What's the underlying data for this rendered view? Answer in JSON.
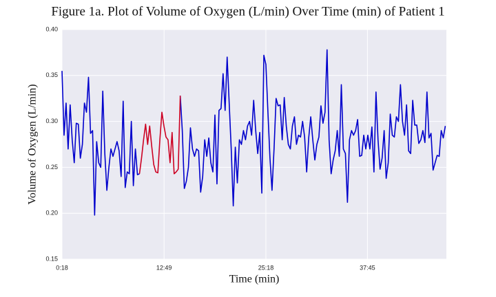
{
  "chart_data": {
    "type": "line",
    "title": "Figure 1a. Plot of Volume of Oxygen (L/min) Over Time (min) of Patient 1",
    "x_label": "Time (min)",
    "y_label": "Volume of Oxygen (L/min)",
    "xlim": [
      18,
      2846
    ],
    "xticks": [
      {
        "value": 18,
        "label": "0:18"
      },
      {
        "value": 769,
        "label": "12:49"
      },
      {
        "value": 1518,
        "label": "25:18"
      },
      {
        "value": 2265,
        "label": "37:45"
      }
    ],
    "ylim": [
      0.15,
      0.4
    ],
    "yticks": [
      {
        "value": 0.15,
        "label": "0.15"
      },
      {
        "value": 0.2,
        "label": "0.20"
      },
      {
        "value": 0.25,
        "label": "0.25"
      },
      {
        "value": 0.3,
        "label": "0.30"
      },
      {
        "value": 0.35,
        "label": "0.35"
      },
      {
        "value": 0.4,
        "label": "0.40"
      }
    ],
    "grid": true,
    "x": [
      18,
      33,
      48,
      63,
      78,
      93,
      108,
      123,
      138,
      153,
      168,
      183,
      198,
      213,
      228,
      243,
      258,
      273,
      288,
      303,
      318,
      333,
      348,
      363,
      378,
      393,
      408,
      423,
      438,
      453,
      468,
      483,
      498,
      513,
      528,
      543,
      558,
      573,
      588,
      603,
      618,
      633,
      648,
      663,
      678,
      693,
      708,
      723,
      738,
      753,
      768,
      783,
      798,
      813,
      828,
      843,
      858,
      873,
      888,
      903,
      918,
      933,
      948,
      963,
      978,
      993,
      1008,
      1023,
      1038,
      1053,
      1068,
      1083,
      1098,
      1113,
      1128,
      1143,
      1158,
      1173,
      1188,
      1203,
      1218,
      1233,
      1248,
      1263,
      1278,
      1293,
      1308,
      1323,
      1338,
      1353,
      1368,
      1383,
      1398,
      1413,
      1428,
      1443,
      1458,
      1473,
      1488,
      1503,
      1518,
      1533,
      1548,
      1563,
      1578,
      1593,
      1608,
      1623,
      1638,
      1653,
      1668,
      1683,
      1698,
      1713,
      1728,
      1743,
      1758,
      1773,
      1788,
      1803,
      1818,
      1833,
      1848,
      1863,
      1878,
      1893,
      1908,
      1923,
      1938,
      1953,
      1968,
      1983,
      1998,
      2013,
      2028,
      2043,
      2058,
      2073,
      2088,
      2103,
      2118,
      2133,
      2148,
      2163,
      2178,
      2193,
      2208,
      2223,
      2238,
      2253,
      2268,
      2283,
      2298,
      2313,
      2328,
      2343,
      2358,
      2373,
      2388,
      2403,
      2418,
      2433,
      2448,
      2463,
      2478,
      2493,
      2508,
      2523,
      2538,
      2553,
      2568,
      2583,
      2598,
      2613,
      2628,
      2643,
      2658,
      2673,
      2688,
      2703,
      2718,
      2733,
      2748,
      2763,
      2778,
      2793,
      2808,
      2823,
      2838
    ],
    "series": [
      {
        "color": "#0000cc",
        "values": [
          0.355,
          0.285,
          0.32,
          0.27,
          0.318,
          0.28,
          0.255,
          0.298,
          0.297,
          0.26,
          0.275,
          0.32,
          0.31,
          0.348,
          0.287,
          0.29,
          0.198,
          0.278,
          0.255,
          0.25,
          0.333,
          0.265,
          0.225,
          0.25,
          0.27,
          0.262,
          0.27,
          0.278,
          0.268,
          0.24,
          0.322,
          0.228,
          0.245,
          0.243,
          0.3,
          0.23,
          0.27,
          0.242,
          0.243,
          null,
          null,
          null,
          null,
          null,
          null,
          null,
          null,
          null,
          null,
          null,
          null,
          null,
          null,
          null,
          null,
          null,
          null,
          null,
          0.328,
          0.29,
          0.227,
          0.235,
          0.25,
          0.293,
          0.27,
          0.262,
          0.27,
          0.268,
          0.223,
          0.24,
          0.28,
          0.262,
          0.282,
          0.255,
          0.245,
          0.307,
          0.232,
          0.312,
          0.314,
          0.352,
          0.312,
          0.37,
          0.32,
          0.27,
          0.208,
          0.272,
          0.233,
          0.28,
          0.275,
          0.29,
          0.28,
          0.295,
          0.3,
          0.285,
          0.323,
          0.29,
          0.265,
          0.288,
          0.222,
          0.372,
          0.362,
          0.31,
          0.26,
          0.225,
          0.27,
          0.325,
          0.317,
          0.318,
          0.28,
          0.326,
          0.295,
          0.275,
          0.27,
          0.295,
          0.305,
          0.275,
          0.285,
          0.283,
          0.3,
          0.283,
          0.245,
          0.282,
          0.305,
          0.28,
          0.258,
          0.275,
          0.283,
          0.317,
          0.298,
          0.31,
          0.378,
          0.28,
          0.243,
          0.258,
          0.268,
          0.29,
          0.262,
          0.34,
          0.27,
          0.265,
          0.212,
          0.28,
          0.29,
          0.285,
          0.29,
          0.302,
          0.262,
          0.263,
          0.285,
          0.27,
          0.285,
          0.27,
          0.294,
          0.245,
          0.332,
          0.28,
          0.248,
          0.26,
          0.29,
          0.238,
          0.255,
          0.308,
          0.285,
          0.283,
          0.305,
          0.3,
          0.34,
          0.3,
          0.285,
          0.318,
          0.268,
          0.265,
          0.323,
          0.296,
          0.296,
          0.276,
          0.28,
          0.29,
          0.277,
          0.332,
          0.282,
          0.287,
          0.247,
          0.255,
          0.263,
          0.262,
          0.29,
          0.282,
          0.295
        ]
      },
      {
        "color": "#cc0022",
        "values": [
          null,
          null,
          null,
          null,
          null,
          null,
          null,
          null,
          null,
          null,
          null,
          null,
          null,
          null,
          null,
          null,
          null,
          null,
          null,
          null,
          null,
          null,
          null,
          null,
          null,
          null,
          null,
          null,
          null,
          null,
          null,
          null,
          null,
          null,
          null,
          null,
          null,
          null,
          0.243,
          0.26,
          0.28,
          0.297,
          0.275,
          0.295,
          0.273,
          0.253,
          0.245,
          0.244,
          0.28,
          0.31,
          0.295,
          0.283,
          0.28,
          0.255,
          0.288,
          0.243,
          0.245,
          0.248,
          0.328,
          null,
          null,
          null,
          null,
          null,
          null,
          null,
          null,
          null,
          null,
          null,
          null,
          null,
          null,
          null,
          null,
          null,
          null,
          null,
          null,
          null,
          null,
          null,
          null,
          null,
          null,
          null,
          null,
          null,
          null,
          null,
          null,
          null,
          null,
          null,
          null,
          null,
          null,
          null,
          null,
          null,
          null,
          null,
          null,
          null,
          null,
          null,
          null,
          null,
          null,
          null,
          null,
          null,
          null,
          null,
          null,
          null,
          null,
          null,
          null,
          null,
          null,
          null,
          null,
          null,
          null,
          null,
          null,
          null,
          null,
          null,
          null,
          null,
          null,
          null,
          null,
          null,
          null,
          null,
          null,
          null,
          null,
          null,
          null,
          null,
          null,
          null,
          null,
          null,
          null,
          null,
          null,
          null,
          null,
          null,
          null,
          null,
          null,
          null,
          null,
          null,
          null,
          null,
          null,
          null,
          null,
          null,
          null,
          null,
          null,
          null,
          null,
          null,
          null,
          null,
          null,
          null,
          null,
          null,
          null,
          null,
          null,
          null,
          null,
          null,
          null,
          null,
          null,
          null,
          null
        ]
      }
    ]
  }
}
